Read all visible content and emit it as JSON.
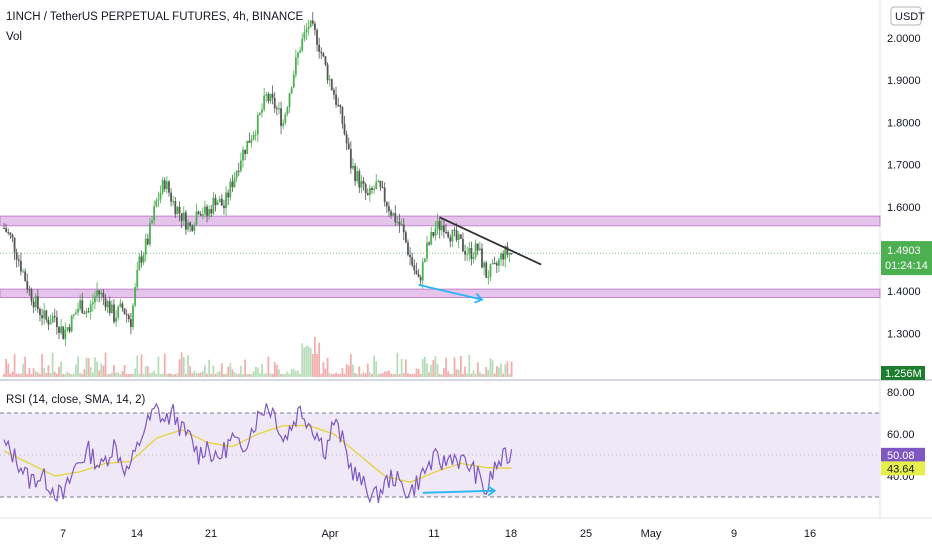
{
  "header": {
    "title": "1INCH / TetherUS PERPETUAL FUTURES, 4h, BINANCE",
    "volume_label": "Vol",
    "currency_button": "USDT"
  },
  "colors": {
    "up": "#26a69a",
    "up_candle": "#4caf50",
    "down": "#555555",
    "zone": "#ce93d8",
    "rsi_line": "#7e57c2",
    "rsi_sma": "#e6d23a",
    "rsi_band": "#ede7f6",
    "trendline": "#333333",
    "arrow": "#29b6f6",
    "price_tag": "#4caf50",
    "rsi_tag": "#7e57c2",
    "sma_tag": "#e6f04a"
  },
  "chart_data": [
    {
      "type": "candlestick",
      "interval": "4h",
      "y_ticks": [
        "2.0000",
        "1.9000",
        "1.8000",
        "1.7000",
        "1.6000",
        "1.4000",
        "1.3000"
      ],
      "ylim": [
        1.23,
        2.09
      ],
      "x_tick_labels": [
        "7",
        "14",
        "21",
        "Apr",
        "11",
        "18",
        "25",
        "May",
        "9",
        "16"
      ],
      "last_price": "1.4903",
      "countdown": "01:24:14",
      "volume_last": "1.256M",
      "price_path": [
        [
          0,
          1.55
        ],
        [
          2,
          1.52
        ],
        [
          4,
          1.46
        ],
        [
          6,
          1.4
        ],
        [
          8,
          1.36
        ],
        [
          10,
          1.33
        ],
        [
          12,
          1.34
        ],
        [
          14,
          1.3
        ],
        [
          16,
          1.33
        ],
        [
          18,
          1.37
        ],
        [
          20,
          1.35
        ],
        [
          22,
          1.4
        ],
        [
          24,
          1.38
        ],
        [
          26,
          1.34
        ],
        [
          28,
          1.36
        ],
        [
          30,
          1.33
        ],
        [
          32,
          1.47
        ],
        [
          34,
          1.52
        ],
        [
          36,
          1.61
        ],
        [
          38,
          1.66
        ],
        [
          40,
          1.61
        ],
        [
          42,
          1.58
        ],
        [
          44,
          1.55
        ],
        [
          46,
          1.6
        ],
        [
          48,
          1.58
        ],
        [
          50,
          1.62
        ],
        [
          52,
          1.6
        ],
        [
          54,
          1.66
        ],
        [
          56,
          1.72
        ],
        [
          58,
          1.76
        ],
        [
          60,
          1.8
        ],
        [
          62,
          1.86
        ],
        [
          64,
          1.84
        ],
        [
          66,
          1.8
        ],
        [
          68,
          1.9
        ],
        [
          70,
          1.98
        ],
        [
          72,
          2.03
        ],
        [
          74,
          2.0
        ],
        [
          76,
          1.93
        ],
        [
          78,
          1.87
        ],
        [
          80,
          1.8
        ],
        [
          82,
          1.7
        ],
        [
          84,
          1.66
        ],
        [
          86,
          1.62
        ],
        [
          88,
          1.65
        ],
        [
          90,
          1.62
        ],
        [
          92,
          1.58
        ],
        [
          94,
          1.55
        ],
        [
          96,
          1.48
        ],
        [
          98,
          1.42
        ],
        [
          100,
          1.5
        ],
        [
          102,
          1.55
        ],
        [
          104,
          1.56
        ],
        [
          106,
          1.53
        ],
        [
          108,
          1.51
        ],
        [
          110,
          1.49
        ],
        [
          112,
          1.5
        ],
        [
          114,
          1.44
        ],
        [
          116,
          1.45
        ],
        [
          118,
          1.49
        ],
        [
          120,
          1.4903
        ]
      ],
      "support_zone": [
        1.385,
        1.405
      ],
      "resistance_zone": [
        1.555,
        1.578
      ],
      "trendline": [
        [
          103,
          1.575
        ],
        [
          127,
          1.463
        ]
      ],
      "price_divergence_arrow": [
        [
          98,
          1.415
        ],
        [
          113,
          1.38
        ]
      ]
    },
    {
      "type": "line",
      "title": "RSI (14, close, SMA, 14, 2)",
      "y_ticks": [
        "80.00",
        "60.00",
        "40.00"
      ],
      "ylim": [
        25,
        85
      ],
      "band": [
        30,
        70
      ],
      "middle": 50,
      "rsi_value": "50.08",
      "sma_value": "43.64",
      "rsi_path": [
        [
          0,
          55
        ],
        [
          3,
          48
        ],
        [
          6,
          38
        ],
        [
          9,
          40
        ],
        [
          12,
          33
        ],
        [
          14,
          30
        ],
        [
          17,
          45
        ],
        [
          20,
          52
        ],
        [
          23,
          44
        ],
        [
          26,
          55
        ],
        [
          29,
          42
        ],
        [
          31,
          50
        ],
        [
          33,
          62
        ],
        [
          36,
          72
        ],
        [
          38,
          66
        ],
        [
          40,
          70
        ],
        [
          42,
          62
        ],
        [
          44,
          58
        ],
        [
          46,
          50
        ],
        [
          48,
          55
        ],
        [
          50,
          47
        ],
        [
          52,
          52
        ],
        [
          54,
          58
        ],
        [
          56,
          52
        ],
        [
          58,
          60
        ],
        [
          60,
          68
        ],
        [
          62,
          74
        ],
        [
          64,
          70
        ],
        [
          66,
          57
        ],
        [
          68,
          64
        ],
        [
          70,
          72
        ],
        [
          72,
          66
        ],
        [
          74,
          60
        ],
        [
          76,
          52
        ],
        [
          78,
          66
        ],
        [
          80,
          57
        ],
        [
          82,
          44
        ],
        [
          84,
          38
        ],
        [
          86,
          33
        ],
        [
          88,
          30
        ],
        [
          90,
          36
        ],
        [
          92,
          40
        ],
        [
          94,
          35
        ],
        [
          96,
          32
        ],
        [
          98,
          38
        ],
        [
          100,
          44
        ],
        [
          102,
          48
        ],
        [
          104,
          46
        ],
        [
          106,
          50
        ],
        [
          108,
          47
        ],
        [
          110,
          45
        ],
        [
          112,
          40
        ],
        [
          114,
          32
        ],
        [
          116,
          44
        ],
        [
          118,
          48
        ],
        [
          120,
          50
        ]
      ],
      "sma_path": [
        [
          0,
          52
        ],
        [
          6,
          46
        ],
        [
          12,
          40
        ],
        [
          18,
          42
        ],
        [
          24,
          46
        ],
        [
          30,
          47
        ],
        [
          36,
          58
        ],
        [
          42,
          62
        ],
        [
          48,
          56
        ],
        [
          54,
          54
        ],
        [
          60,
          60
        ],
        [
          66,
          64
        ],
        [
          72,
          64
        ],
        [
          78,
          60
        ],
        [
          84,
          50
        ],
        [
          90,
          40
        ],
        [
          96,
          37
        ],
        [
          102,
          42
        ],
        [
          108,
          46
        ],
        [
          114,
          44
        ],
        [
          120,
          43.64
        ]
      ],
      "rsi_divergence_arrow": [
        [
          99,
          32
        ],
        [
          116,
          33
        ]
      ]
    }
  ]
}
